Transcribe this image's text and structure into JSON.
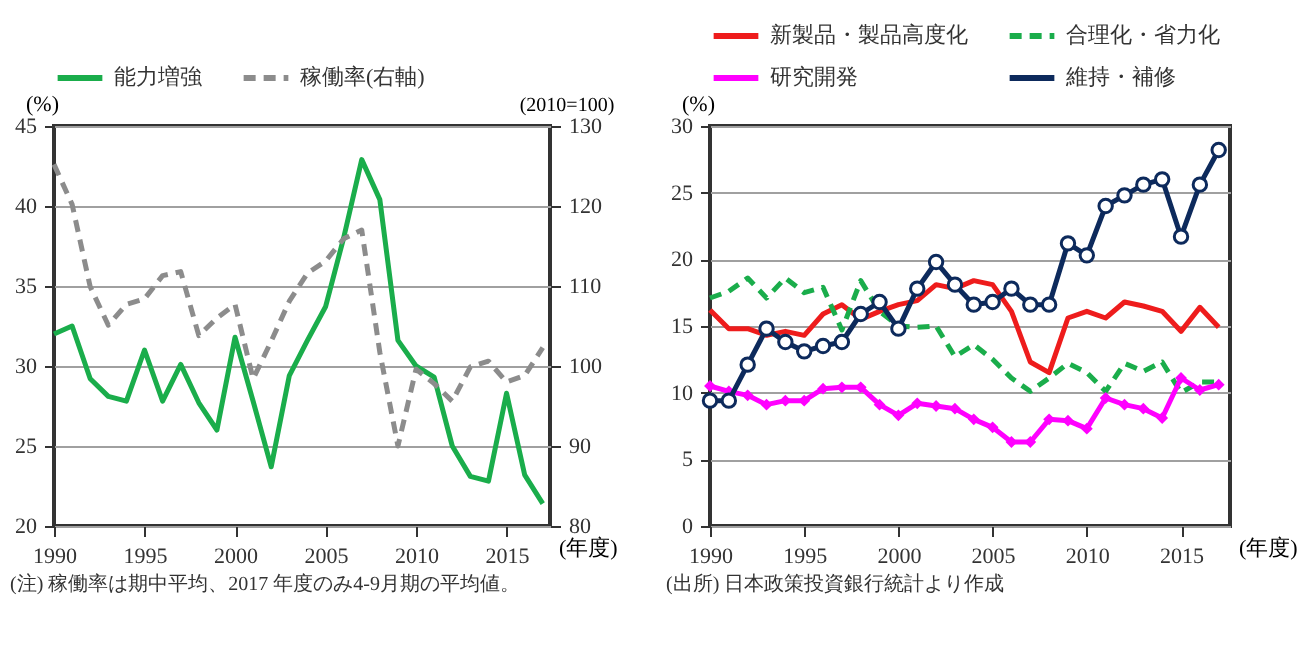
{
  "chart_data": [
    {
      "type": "line",
      "ylabel": "(%)",
      "y2label": "(2010=100)",
      "xlabel": "(年度)",
      "x": [
        1990,
        1991,
        1992,
        1993,
        1994,
        1995,
        1996,
        1997,
        1998,
        1999,
        2000,
        2001,
        2002,
        2003,
        2004,
        2005,
        2006,
        2007,
        2008,
        2009,
        2010,
        2011,
        2012,
        2013,
        2014,
        2015,
        2016,
        2017
      ],
      "xlim": [
        1990,
        2017.4
      ],
      "xticks": [
        1990,
        1995,
        2000,
        2005,
        2010,
        2015
      ],
      "ylim": [
        20,
        45
      ],
      "yticks": [
        20,
        25,
        30,
        35,
        40,
        45
      ],
      "y2lim": [
        80,
        130
      ],
      "y2ticks": [
        80,
        90,
        100,
        110,
        120,
        130
      ],
      "grid": "y",
      "legend": "top",
      "annotations": [
        "(注) 稼働率は期中平均、2017 年度のみ4-9月期の平均値。"
      ],
      "series": [
        {
          "name": "能力増強",
          "color": "#1aad4b",
          "line_style": "solid",
          "values": [
            32.0,
            32.5,
            29.2,
            28.1,
            27.8,
            31.0,
            27.8,
            30.1,
            27.7,
            26.0,
            31.8,
            27.8,
            23.7,
            29.4,
            31.6,
            33.7,
            38.0,
            42.9,
            40.4,
            31.6,
            30.0,
            29.3,
            25.0,
            23.1,
            22.8,
            28.3,
            23.2,
            21.4
          ]
        },
        {
          "name": "稼働率(右軸)",
          "color": "#8c8c8c",
          "line_style": "dashed",
          "axis": "y2",
          "values": [
            125.2,
            120.2,
            109.9,
            105.1,
            107.7,
            108.4,
            111.3,
            111.8,
            103.8,
            106.0,
            107.7,
            98.4,
            103.1,
            108.1,
            111.6,
            113.1,
            115.9,
            117.0,
            101.7,
            90.0,
            99.6,
            97.8,
            95.6,
            99.9,
            100.6,
            98.0,
            98.8,
            102.3
          ]
        }
      ]
    },
    {
      "type": "line",
      "ylabel": "(%)",
      "xlabel": "(年度)",
      "x": [
        1990,
        1991,
        1992,
        1993,
        1994,
        1995,
        1996,
        1997,
        1998,
        1999,
        2000,
        2001,
        2002,
        2003,
        2004,
        2005,
        2006,
        2007,
        2008,
        2009,
        2010,
        2011,
        2012,
        2013,
        2014,
        2015,
        2016,
        2017
      ],
      "xlim": [
        1990,
        2017.6
      ],
      "xticks": [
        1990,
        1995,
        2000,
        2005,
        2010,
        2015
      ],
      "ylim": [
        0,
        30
      ],
      "yticks": [
        0,
        5,
        10,
        15,
        20,
        25,
        30
      ],
      "grid": "y",
      "legend": "top",
      "annotations": [
        "(出所) 日本政策投資銀行統計より作成"
      ],
      "series": [
        {
          "name": "新製品・製品高度化",
          "color": "#ee1c1c",
          "line_style": "solid",
          "marker": "none",
          "values": [
            16.2,
            14.8,
            14.8,
            14.3,
            14.6,
            14.3,
            15.9,
            16.6,
            15.5,
            16.1,
            16.6,
            16.9,
            18.1,
            17.8,
            18.4,
            18.1,
            16.1,
            12.3,
            11.5,
            15.6,
            16.1,
            15.6,
            16.8,
            16.5,
            16.1,
            14.6,
            16.4,
            14.9
          ]
        },
        {
          "name": "合理化・省力化",
          "color": "#1aad4b",
          "line_style": "dashed",
          "marker": "none",
          "values": [
            17.1,
            17.6,
            18.6,
            17.1,
            18.6,
            17.5,
            17.9,
            14.7,
            18.4,
            16.1,
            15.0,
            14.9,
            15.0,
            12.7,
            13.6,
            12.5,
            11.1,
            10.1,
            11.1,
            12.2,
            11.5,
            10.1,
            12.2,
            11.6,
            12.3,
            10.0,
            10.8,
            10.8
          ]
        },
        {
          "name": "研究開発",
          "color": "#ff00ff",
          "line_style": "solid",
          "marker": "diamond",
          "values": [
            10.5,
            10.1,
            9.8,
            9.1,
            9.4,
            9.4,
            10.3,
            10.4,
            10.4,
            9.1,
            8.3,
            9.2,
            9.0,
            8.8,
            8.0,
            7.4,
            6.3,
            6.3,
            8.0,
            7.9,
            7.3,
            9.6,
            9.1,
            8.8,
            8.1,
            11.1,
            10.2,
            10.6
          ]
        },
        {
          "name": "維持・補修",
          "color": "#0d2a5c",
          "line_style": "solid",
          "marker": "circle",
          "values": [
            9.4,
            9.4,
            12.1,
            14.8,
            13.8,
            13.1,
            13.5,
            13.8,
            15.9,
            16.8,
            14.8,
            17.8,
            19.8,
            18.1,
            16.6,
            16.8,
            17.8,
            16.6,
            16.6,
            21.2,
            20.3,
            24.0,
            24.8,
            25.6,
            26.0,
            21.7,
            25.6,
            28.2
          ]
        }
      ]
    }
  ]
}
